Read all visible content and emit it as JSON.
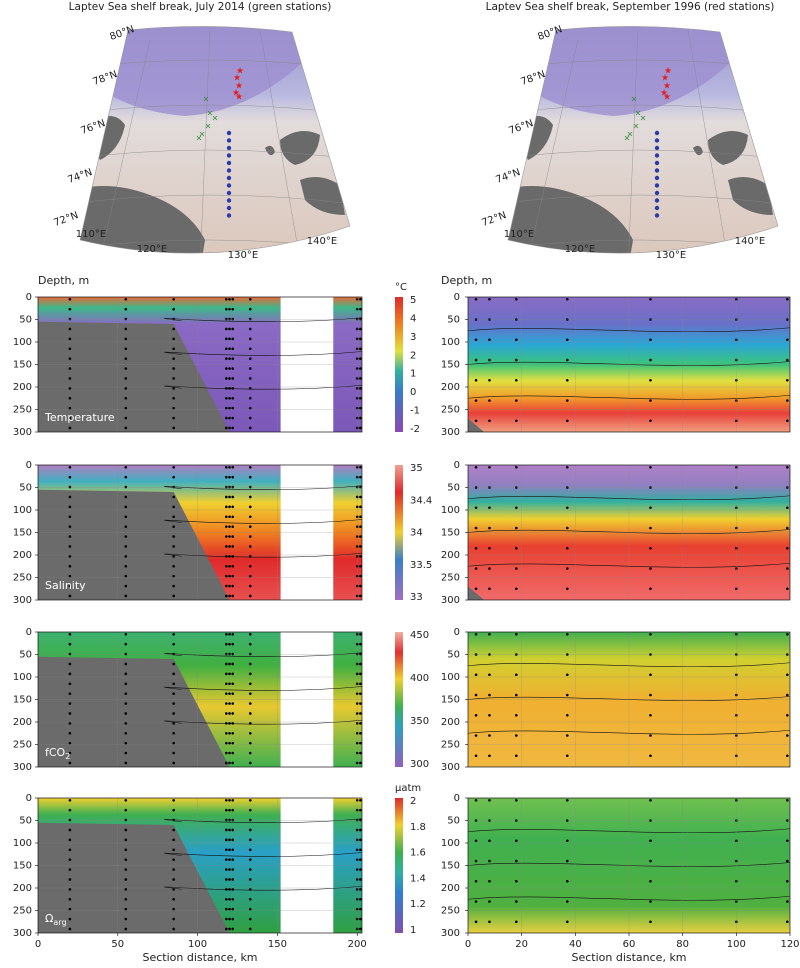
{
  "maps": [
    {
      "title": "Laptev Sea shelf break, July 2014 (green stations)"
    },
    {
      "title": "Laptev Sea shelf break, September 1996 (red stations)"
    }
  ],
  "map_lat_labels": [
    "80°N",
    "78°N",
    "76°N",
    "74°N",
    "72°N"
  ],
  "map_lon_labels": [
    "110°E",
    "120°E",
    "130°E",
    "140°E"
  ],
  "depth_axis": {
    "label": "Depth, m",
    "ticks": [
      0,
      50,
      100,
      150,
      200,
      250,
      300
    ]
  },
  "x_axes": [
    {
      "label": "Section distance, km",
      "ticks": [
        0,
        50,
        100,
        150,
        200
      ]
    },
    {
      "label": "Section distance, km",
      "ticks": [
        0,
        20,
        40,
        60,
        80,
        100,
        120
      ]
    }
  ],
  "panels": [
    {
      "label": "Temperature",
      "unit": "°C",
      "colorbar_ticks": [
        5,
        4,
        3,
        2,
        1,
        0,
        -1,
        -2
      ]
    },
    {
      "label": "Salinity",
      "colorbar_ticks": [
        35,
        34.4,
        34,
        33.5,
        33
      ]
    },
    {
      "label": "fCO",
      "label_sub": "2",
      "colorbar_ticks": [
        450,
        400,
        350,
        300
      ]
    },
    {
      "label": "Ω",
      "label_sub": "arg",
      "unit": "µatm",
      "colorbar_ticks": [
        2,
        1.8,
        1.6,
        1.4,
        1.2,
        1
      ]
    }
  ]
}
